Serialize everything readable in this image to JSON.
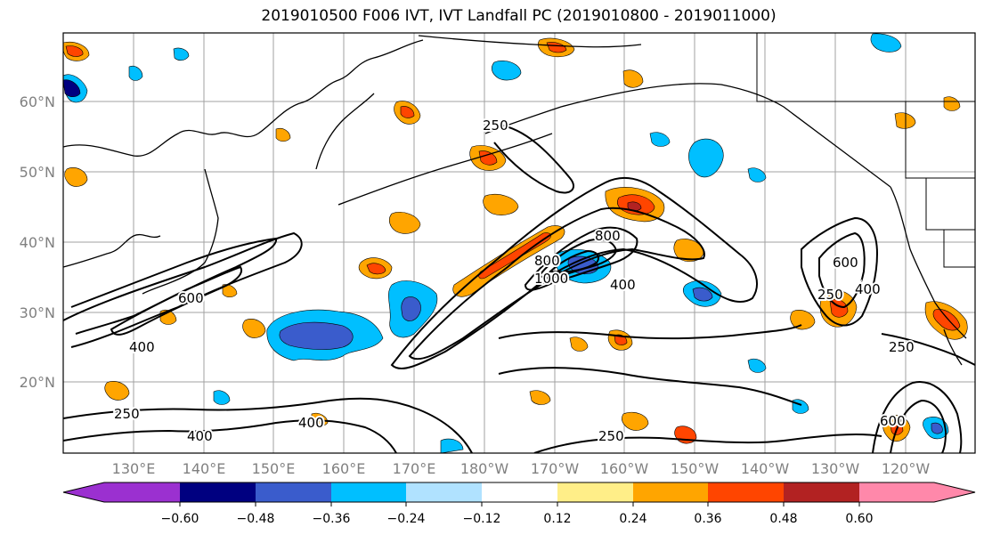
{
  "title": "2019010500 F006 IVT, IVT Landfall PC (2019010800 - 2019011000)",
  "lat_labels": [
    "60°N",
    "50°N",
    "40°N",
    "30°N",
    "20°N"
  ],
  "lon_labels": [
    "130°E",
    "140°E",
    "150°E",
    "160°E",
    "170°E",
    "180°W",
    "170°W",
    "160°W",
    "150°W",
    "140°W",
    "130°W",
    "120°W"
  ],
  "contour_labels": [
    "250",
    "250",
    "250",
    "250",
    "250",
    "400",
    "400",
    "400",
    "400",
    "400",
    "600",
    "600",
    "600",
    "800",
    "800",
    "1000"
  ],
  "colorbar": {
    "colors": [
      "#9b30d0",
      "#000080",
      "#3a5ccc",
      "#00bfff",
      "#b0e2ff",
      "#ffffff",
      "#ffee88",
      "#ffa500",
      "#ff4500",
      "#b22222",
      "#ff88aa"
    ],
    "ticks": [
      "−0.60",
      "−0.48",
      "−0.36",
      "−0.24",
      "−0.12",
      "0.12",
      "0.24",
      "0.36",
      "0.48",
      "0.60"
    ]
  }
}
